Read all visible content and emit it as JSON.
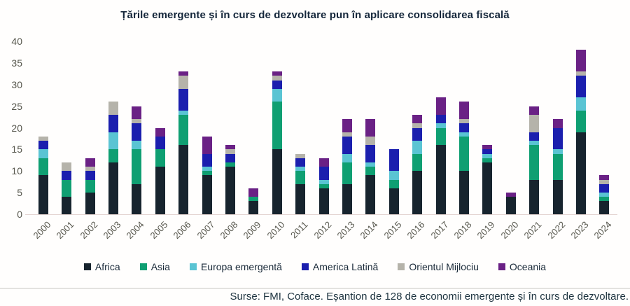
{
  "title": "Țările emergente și în curs de dezvoltare pun în aplicare consolidarea fiscală",
  "source": "Surse: FMI, Coface. Eșantion de 128 de economii emergente și în curs de dezvoltare.",
  "chart_data": {
    "type": "bar",
    "stacked": true,
    "title": "Țările emergente și în curs de dezvoltare pun în aplicare consolidarea fiscală",
    "xlabel": "",
    "ylabel": "",
    "ylim": [
      0,
      40
    ],
    "y_ticks": [
      0,
      5,
      10,
      15,
      20,
      25,
      30,
      35,
      40
    ],
    "grid": false,
    "legend_position": "bottom",
    "categories": [
      "2000",
      "2001",
      "2002",
      "2003",
      "2004",
      "2005",
      "2006",
      "2007",
      "2008",
      "2009",
      "2010",
      "2011",
      "2012",
      "2013",
      "2014",
      "2015",
      "2016",
      "2017",
      "2018",
      "2019",
      "2020",
      "2021",
      "2022",
      "2023",
      "2024"
    ],
    "series": [
      {
        "name": "Africa",
        "color": "#17242e",
        "values": [
          9,
          4,
          5,
          12,
          7,
          11,
          16,
          9,
          11,
          3,
          15,
          7,
          6,
          7,
          9,
          6,
          10,
          16,
          10,
          12,
          4,
          8,
          8,
          19,
          3
        ]
      },
      {
        "name": "Asia",
        "color": "#0f9f72",
        "values": [
          4,
          4,
          3,
          3,
          8,
          4,
          7,
          1,
          1,
          1,
          11,
          3,
          1,
          5,
          2,
          2,
          4,
          4,
          8,
          1,
          0,
          8,
          6,
          5,
          1
        ]
      },
      {
        "name": "Europa emergentă",
        "color": "#5ac4d3",
        "values": [
          2,
          0,
          0,
          4,
          2,
          0,
          1,
          1,
          0,
          0,
          3,
          1,
          1,
          2,
          1,
          2,
          3,
          1,
          1,
          1,
          0,
          1,
          1,
          3,
          1
        ]
      },
      {
        "name": "America Latină",
        "color": "#1b1fae",
        "values": [
          2,
          2,
          2,
          4,
          4,
          3,
          5,
          3,
          2,
          0,
          2,
          2,
          3,
          4,
          4,
          5,
          3,
          2,
          2,
          1,
          0,
          2,
          5,
          5,
          2
        ]
      },
      {
        "name": "Orientul Mijlociu",
        "color": "#b5b3aa",
        "values": [
          1,
          2,
          1,
          3,
          1,
          0,
          3,
          0,
          1,
          0,
          1,
          1,
          0,
          1,
          2,
          0,
          1,
          0,
          1,
          0,
          0,
          4,
          0,
          1,
          1
        ]
      },
      {
        "name": "Oceania",
        "color": "#6a2185",
        "values": [
          0,
          0,
          2,
          0,
          3,
          2,
          1,
          4,
          1,
          2,
          1,
          0,
          2,
          3,
          4,
          0,
          2,
          4,
          4,
          1,
          1,
          2,
          2,
          5,
          1
        ]
      }
    ],
    "totals": [
      18,
      12,
      13,
      26,
      25,
      20,
      33,
      18,
      16,
      6,
      33,
      14,
      13,
      22,
      22,
      15,
      23,
      27,
      26,
      16,
      5,
      25,
      22,
      38,
      9
    ]
  }
}
